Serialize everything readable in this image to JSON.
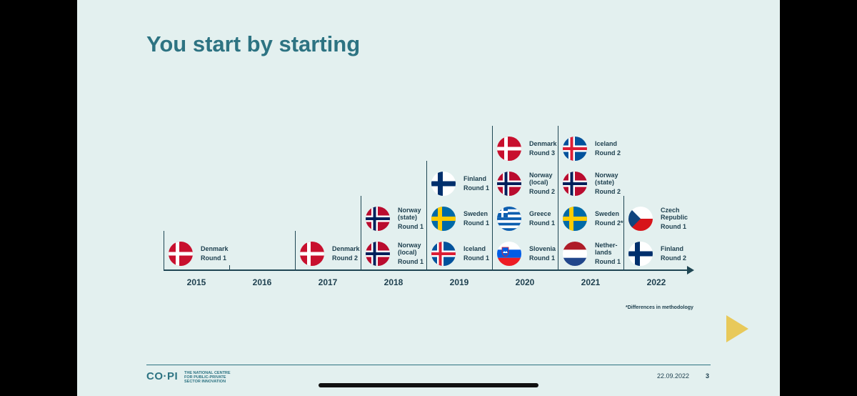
{
  "slide": {
    "title": "You start by starting",
    "footnote": "*Differences in methodology",
    "date": "22.09.2022",
    "page_number": "3",
    "logo_text": "CO·PI",
    "logo_tagline": "THE NATIONAL CENTRE\nFOR PUBLIC-PRIVATE\nSECTOR INNOVATION"
  },
  "colors": {
    "title": "#2d7382",
    "text": "#1d3f4e",
    "background": "#e3f0ef",
    "play_button": "#e8c95a"
  },
  "timeline": {
    "years": [
      "2015",
      "2016",
      "2017",
      "2018",
      "2019",
      "2020",
      "2021",
      "2022"
    ],
    "entries": [
      {
        "year": "2015",
        "country": "Denmark",
        "round": "Round 1",
        "flag": "denmark",
        "row": 0
      },
      {
        "year": "2017",
        "country": "Denmark",
        "round": "Round 2",
        "flag": "denmark",
        "row": 0
      },
      {
        "year": "2018",
        "country": "Norway\n(local)",
        "round": "Round 1",
        "flag": "norway",
        "row": 0
      },
      {
        "year": "2018",
        "country": "Norway\n(state)",
        "round": "Round 1",
        "flag": "norway",
        "row": 1
      },
      {
        "year": "2019",
        "country": "Iceland",
        "round": "Round 1",
        "flag": "iceland",
        "row": 0
      },
      {
        "year": "2019",
        "country": "Sweden",
        "round": "Round 1",
        "flag": "sweden",
        "row": 1
      },
      {
        "year": "2019",
        "country": "Finland",
        "round": "Round 1",
        "flag": "finland",
        "row": 2
      },
      {
        "year": "2020",
        "country": "Slovenia",
        "round": "Round 1",
        "flag": "slovenia",
        "row": 0
      },
      {
        "year": "2020",
        "country": "Greece",
        "round": "Round 1",
        "flag": "greece",
        "row": 1
      },
      {
        "year": "2020",
        "country": "Norway\n(local)",
        "round": "Round 2",
        "flag": "norway",
        "row": 2
      },
      {
        "year": "2020",
        "country": "Denmark",
        "round": "Round 3",
        "flag": "denmark",
        "row": 3
      },
      {
        "year": "2021",
        "country": "Nether-\nlands",
        "round": "Round 1",
        "flag": "netherlands",
        "row": 0
      },
      {
        "year": "2021",
        "country": "Sweden",
        "round": "Round 2*",
        "flag": "sweden",
        "row": 1
      },
      {
        "year": "2021",
        "country": "Norway\n(state)",
        "round": "Round 2",
        "flag": "norway",
        "row": 2
      },
      {
        "year": "2021",
        "country": "Iceland",
        "round": "Round 2",
        "flag": "iceland",
        "row": 3
      },
      {
        "year": "2022",
        "country": "Finland",
        "round": "Round 2",
        "flag": "finland",
        "row": 0
      },
      {
        "year": "2022",
        "country": "Czech\nRepublic",
        "round": "Round 1",
        "flag": "czech-republic",
        "row": 1
      }
    ]
  }
}
